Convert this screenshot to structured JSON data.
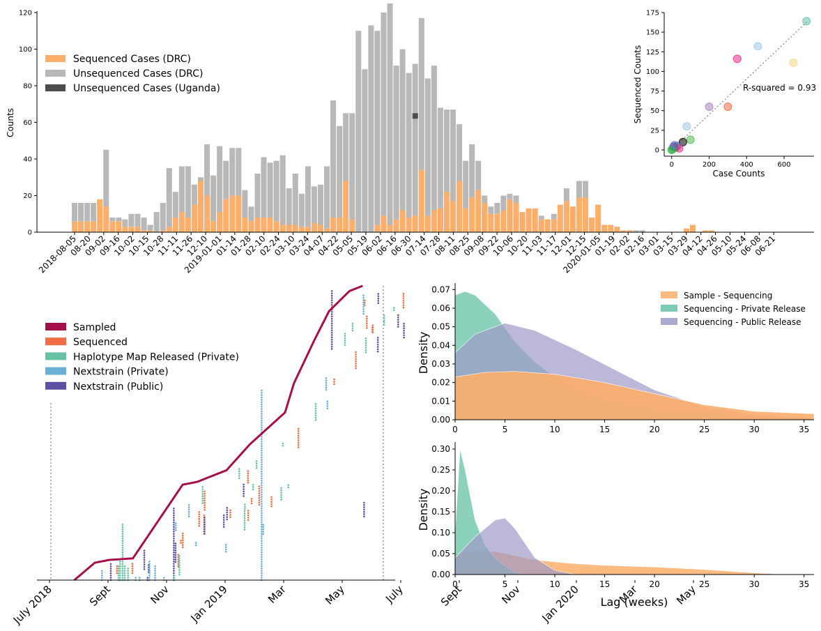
{
  "colors": {
    "seq": "#fdae6b",
    "unseq": "#b8b8b8",
    "uganda": "#4d4d4d",
    "sampled": "#a50f4a",
    "sequenced": "#f16d43",
    "haplotype": "#66c2a5",
    "ns_private": "#6baed6",
    "ns_public": "#5e4fa2",
    "kde_seq": "#fdae6b",
    "kde_private": "#66c2a5",
    "kde_public": "#9e9ac8",
    "fit_line": "#888888"
  },
  "chart_data": [
    {
      "id": "bar",
      "type": "bar",
      "title": "",
      "xlabel": "",
      "ylabel": "Counts",
      "ylim": [
        0,
        120
      ],
      "yticks": [
        0,
        20,
        40,
        60,
        80,
        100,
        120
      ],
      "tick_labels": [
        "2018-08-05",
        "08-20",
        "09-02",
        "09-16",
        "10-02",
        "10-15",
        "10-28",
        "11-11",
        "11-26",
        "12-10",
        "2019-01-01",
        "01-14",
        "01-28",
        "02-10",
        "02-24",
        "03-10",
        "03-24",
        "04-07",
        "04-22",
        "05-05",
        "05-19",
        "06-02",
        "06-16",
        "06-30",
        "07-14",
        "07-28",
        "08-11",
        "08-25",
        "09-08",
        "09-22",
        "10-06",
        "10-20",
        "11-03",
        "11-17",
        "12-01",
        "12-15",
        "2020-01-05",
        "01-19",
        "02-02",
        "02-16",
        "03-01",
        "03-15",
        "03-29",
        "04-12",
        "04-26",
        "05-10",
        "05-24",
        "06-08",
        "06-21"
      ],
      "legend": [
        "Sequenced Cases (DRC)",
        "Unsequenced Cases (DRC)",
        "Unsequenced Cases (Uganda)"
      ],
      "legend_position": "upper-left",
      "series": [
        {
          "name": "Sequenced Cases (DRC)",
          "values": [
            6,
            6,
            6,
            6,
            18,
            14,
            6,
            6,
            3,
            3,
            3,
            1,
            1,
            0,
            1,
            3,
            8,
            11,
            8,
            15,
            28,
            20,
            6,
            11,
            18,
            20,
            20,
            8,
            6,
            8,
            8,
            8,
            6,
            4,
            4,
            4,
            3,
            3,
            5,
            4,
            2,
            8,
            8,
            28,
            7,
            0,
            0,
            0,
            4,
            9,
            4,
            7,
            12,
            8,
            9,
            34,
            9,
            12,
            13,
            22,
            17,
            28,
            13,
            19,
            23,
            16,
            10,
            10,
            12,
            18,
            16,
            11,
            13,
            13,
            7,
            7,
            7,
            15,
            17,
            14,
            19,
            19,
            8,
            15,
            4,
            4,
            3,
            1,
            1,
            0,
            0,
            0,
            0,
            0,
            0,
            0,
            0,
            2,
            4,
            0,
            1,
            1,
            0,
            0,
            0,
            0,
            0,
            0,
            0,
            0,
            0,
            0
          ]
        },
        {
          "name": "Unsequenced Cases (DRC)",
          "values": [
            10,
            10,
            10,
            10,
            0,
            31,
            2,
            2,
            4,
            7,
            7,
            7,
            3,
            11,
            15,
            32,
            14,
            25,
            28,
            11,
            2,
            28,
            25,
            36,
            21,
            26,
            26,
            15,
            8,
            24,
            33,
            30,
            33,
            38,
            20,
            28,
            18,
            33,
            20,
            22,
            34,
            64,
            50,
            37,
            58,
            110,
            89,
            113,
            106,
            111,
            121,
            84,
            88,
            79,
            83,
            83,
            75,
            79,
            55,
            45,
            50,
            31,
            26,
            29,
            16,
            4,
            4,
            6,
            8,
            3,
            4,
            0,
            0,
            0,
            2,
            0,
            3,
            0,
            7,
            0,
            9,
            9,
            0,
            0,
            0,
            0,
            0,
            0,
            0,
            1,
            1,
            0,
            0,
            0,
            0,
            0,
            0,
            0,
            0,
            0,
            0,
            0,
            0,
            0,
            0,
            0,
            0,
            0,
            0,
            0,
            0,
            0
          ]
        },
        {
          "name": "Unsequenced Cases (Uganda)",
          "values": [
            0,
            0,
            0,
            0,
            0,
            0,
            0,
            0,
            0,
            0,
            0,
            0,
            0,
            0,
            0,
            0,
            0,
            0,
            0,
            0,
            0,
            0,
            0,
            0,
            0,
            0,
            0,
            0,
            0,
            0,
            0,
            0,
            0,
            0,
            0,
            0,
            0,
            0,
            0,
            0,
            0,
            0,
            0,
            0,
            0,
            0,
            0,
            0,
            0,
            0,
            0,
            0,
            0,
            0,
            3,
            0,
            0,
            0,
            0,
            0,
            0,
            0,
            0,
            0,
            0,
            0,
            0,
            0,
            0,
            0,
            0,
            0,
            0,
            0,
            0,
            0,
            0,
            0,
            0,
            0,
            0,
            0,
            0,
            0,
            0,
            0,
            0,
            0,
            0,
            0,
            0,
            0,
            0,
            0,
            0,
            0,
            0,
            0,
            0,
            0,
            0,
            0,
            0,
            0,
            0,
            0,
            0,
            0,
            0,
            0,
            0,
            0
          ]
        }
      ]
    },
    {
      "id": "inset",
      "type": "scatter",
      "xlabel": "Case Counts",
      "ylabel": "Sequenced Counts",
      "xlim": [
        -40,
        760
      ],
      "ylim": [
        -8,
        175
      ],
      "xticks": [
        0,
        200,
        400,
        600
      ],
      "yticks": [
        0,
        25,
        50,
        75,
        100,
        125,
        150,
        175
      ],
      "annotation": "R-squared = 0.93",
      "fit_slope": 0.226,
      "points": [
        {
          "x": 720,
          "y": 164,
          "c": "#66c2a5"
        },
        {
          "x": 460,
          "y": 132,
          "c": "#9ecae1"
        },
        {
          "x": 650,
          "y": 111,
          "c": "#fdd380"
        },
        {
          "x": 350,
          "y": 116,
          "c": "#e7298a"
        },
        {
          "x": 200,
          "y": 55,
          "c": "#a583c0"
        },
        {
          "x": 300,
          "y": 55,
          "c": "#f16d43"
        },
        {
          "x": 80,
          "y": 30,
          "c": "#9ecae1"
        },
        {
          "x": 100,
          "y": 13,
          "c": "#4dbd4d"
        },
        {
          "x": 60,
          "y": 10,
          "c": "#000000"
        },
        {
          "x": 30,
          "y": 5,
          "c": "#1f78b4"
        },
        {
          "x": 20,
          "y": 3,
          "c": "#d95f02"
        },
        {
          "x": 40,
          "y": 2,
          "c": "#e7298a"
        },
        {
          "x": 10,
          "y": 4,
          "c": "#2b2bd9"
        },
        {
          "x": 5,
          "y": 1,
          "c": "#1b9e77"
        },
        {
          "x": 0,
          "y": 0,
          "c": "#33bb33"
        },
        {
          "x": 15,
          "y": 6,
          "c": "#7570b3"
        }
      ]
    },
    {
      "id": "timeline",
      "type": "scatter",
      "xlabel": "",
      "ylabel": "",
      "xticks": [
        "July 2018",
        "Sept",
        "Nov",
        "Jan 2019",
        "Mar",
        "May",
        "July",
        "Sept",
        "Nov",
        "Jan 2020",
        "Mar",
        "May"
      ],
      "x_range_months": [
        0,
        12.8
      ],
      "legend": [
        "Sampled",
        "Sequenced",
        "Haplotype Map Released (Private)",
        "Nextstrain (Private)",
        "Nextstrain (Public)"
      ],
      "legend_position": "upper-left",
      "sample_curve": {
        "x": [
          0.8,
          1.5,
          2.0,
          2.8,
          3.5,
          4.5,
          5.0,
          6.0,
          6.8,
          8.0,
          8.3,
          9.0,
          9.5,
          10.2,
          10.7
        ],
        "y": [
          0,
          6,
          7,
          7.5,
          18,
          33,
          34,
          38,
          47,
          58,
          68,
          83,
          93,
          100,
          102
        ]
      },
      "release_columns": [
        {
          "x": 2.45,
          "y0": 0,
          "y1": 20,
          "c": "#66c2a5"
        },
        {
          "x": 4.2,
          "y0": 0,
          "y1": 25,
          "c": "#5e4fa2"
        },
        {
          "x": 7.2,
          "y0": 0,
          "y1": 66,
          "c": "#6baed6"
        },
        {
          "x": 9.6,
          "y0": 80,
          "y1": 100,
          "c": "#5e4fa2"
        },
        {
          "x": 10.7,
          "y0": 22,
          "y1": 27,
          "c": "#5e4fa2"
        }
      ]
    },
    {
      "id": "kde_top",
      "type": "area",
      "xlabel": "",
      "ylabel": "Density",
      "xlim": [
        0,
        36
      ],
      "ylim": [
        0,
        0.072
      ],
      "xticks": [
        0,
        5,
        10,
        15,
        20,
        25,
        30,
        35
      ],
      "ytick_labels": [
        "0.00",
        "0.01",
        "0.02",
        "0.03",
        "0.04",
        "0.05",
        "0.06",
        "0.07"
      ],
      "legend": [
        "Sample - Sequencing",
        "Sequencing - Private Release",
        "Sequencing - Public Release"
      ],
      "legend_position": "upper-right",
      "series": [
        {
          "name": "Sample - Sequencing",
          "x": [
            0,
            3,
            6,
            10,
            15,
            20,
            25,
            30,
            36
          ],
          "values": [
            0.023,
            0.0255,
            0.026,
            0.0245,
            0.02,
            0.014,
            0.008,
            0.0045,
            0.0032
          ]
        },
        {
          "name": "Sequencing - Private Release",
          "x": [
            0,
            1,
            2,
            4,
            6,
            8,
            10,
            14,
            20,
            30,
            36
          ],
          "values": [
            0.067,
            0.069,
            0.067,
            0.057,
            0.042,
            0.031,
            0.023,
            0.013,
            0.006,
            0.002,
            0.001
          ]
        },
        {
          "name": "Sequencing - Public Release",
          "x": [
            0,
            2,
            5,
            8,
            12,
            16,
            20,
            25,
            30,
            36
          ],
          "values": [
            0.036,
            0.046,
            0.052,
            0.048,
            0.038,
            0.027,
            0.016,
            0.007,
            0.003,
            0.001
          ]
        }
      ]
    },
    {
      "id": "kde_bottom",
      "type": "area",
      "xlabel": "Lag (weeks)",
      "ylabel": "Density",
      "xlim": [
        0,
        36
      ],
      "ylim": [
        0,
        0.31
      ],
      "xticks": [
        0,
        5,
        10,
        15,
        20,
        25,
        30,
        35
      ],
      "ytick_labels": [
        "0.00",
        "0.05",
        "0.10",
        "0.15",
        "0.20",
        "0.25",
        "0.30"
      ],
      "series": [
        {
          "name": "Sample - Sequencing",
          "x": [
            0,
            2,
            4,
            6,
            8,
            10,
            12,
            15,
            20,
            25,
            30,
            33
          ],
          "values": [
            0.048,
            0.055,
            0.055,
            0.045,
            0.035,
            0.03,
            0.026,
            0.022,
            0.018,
            0.012,
            0.004,
            0.0
          ]
        },
        {
          "name": "Sequencing - Private Release",
          "x": [
            0,
            0.5,
            1,
            2,
            3,
            4,
            5,
            6,
            7
          ],
          "values": [
            0.1,
            0.3,
            0.25,
            0.13,
            0.07,
            0.04,
            0.02,
            0.005,
            0.0
          ]
        },
        {
          "name": "Sequencing - Public Release",
          "x": [
            0,
            2,
            3,
            4,
            5,
            6,
            8,
            10,
            12
          ],
          "values": [
            0.04,
            0.09,
            0.11,
            0.13,
            0.135,
            0.11,
            0.04,
            0.01,
            0.0
          ]
        }
      ]
    }
  ]
}
